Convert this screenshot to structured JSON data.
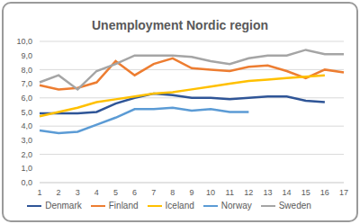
{
  "chart_data": {
    "type": "line",
    "title": "Unemployment Nordic region",
    "categories": [
      1,
      2,
      3,
      4,
      5,
      6,
      7,
      8,
      9,
      10,
      11,
      12,
      13,
      14,
      15,
      16,
      17
    ],
    "series": [
      {
        "name": "Denmark",
        "color": "#2f5597",
        "values": [
          4.9,
          4.9,
          4.9,
          5.0,
          5.6,
          6.0,
          6.3,
          6.2,
          6.0,
          6.0,
          5.9,
          6.0,
          6.1,
          6.1,
          5.8,
          5.7,
          null
        ]
      },
      {
        "name": "Finland",
        "color": "#ed7d31",
        "values": [
          6.9,
          6.6,
          6.7,
          7.1,
          8.6,
          7.6,
          8.4,
          8.8,
          8.1,
          8.0,
          7.9,
          8.2,
          8.3,
          7.9,
          7.4,
          8.0,
          7.8
        ]
      },
      {
        "name": "Iceland",
        "color": "#ffc000",
        "values": [
          4.7,
          5.0,
          5.3,
          5.7,
          5.9,
          6.1,
          6.3,
          6.4,
          6.6,
          6.8,
          7.0,
          7.2,
          7.3,
          7.4,
          7.5,
          7.6,
          null
        ]
      },
      {
        "name": "Norway",
        "color": "#5b9bd5",
        "values": [
          3.7,
          3.5,
          3.6,
          4.1,
          4.6,
          5.2,
          5.2,
          5.3,
          5.1,
          5.2,
          5.0,
          5.0,
          null,
          null,
          null,
          null,
          null
        ]
      },
      {
        "name": "Sweden",
        "color": "#a5a5a5",
        "values": [
          7.1,
          7.6,
          6.6,
          7.9,
          8.4,
          9.0,
          9.0,
          9.0,
          8.9,
          8.6,
          8.4,
          8.8,
          9.0,
          9.0,
          9.4,
          9.1,
          9.1
        ]
      }
    ],
    "ylim": [
      0,
      10
    ],
    "yticks": [
      {
        "value": 0,
        "label": "0,0"
      },
      {
        "value": 1,
        "label": "1,0"
      },
      {
        "value": 2,
        "label": "2,0"
      },
      {
        "value": 3,
        "label": "3,0"
      },
      {
        "value": 4,
        "label": "4,0"
      },
      {
        "value": 5,
        "label": "5,0"
      },
      {
        "value": 6,
        "label": "6,0"
      },
      {
        "value": 7,
        "label": "7,0"
      },
      {
        "value": 8,
        "label": "8,0"
      },
      {
        "value": 9,
        "label": "9,0"
      },
      {
        "value": 10,
        "label": "10,0"
      }
    ],
    "grid": true,
    "legend": "bottom"
  }
}
